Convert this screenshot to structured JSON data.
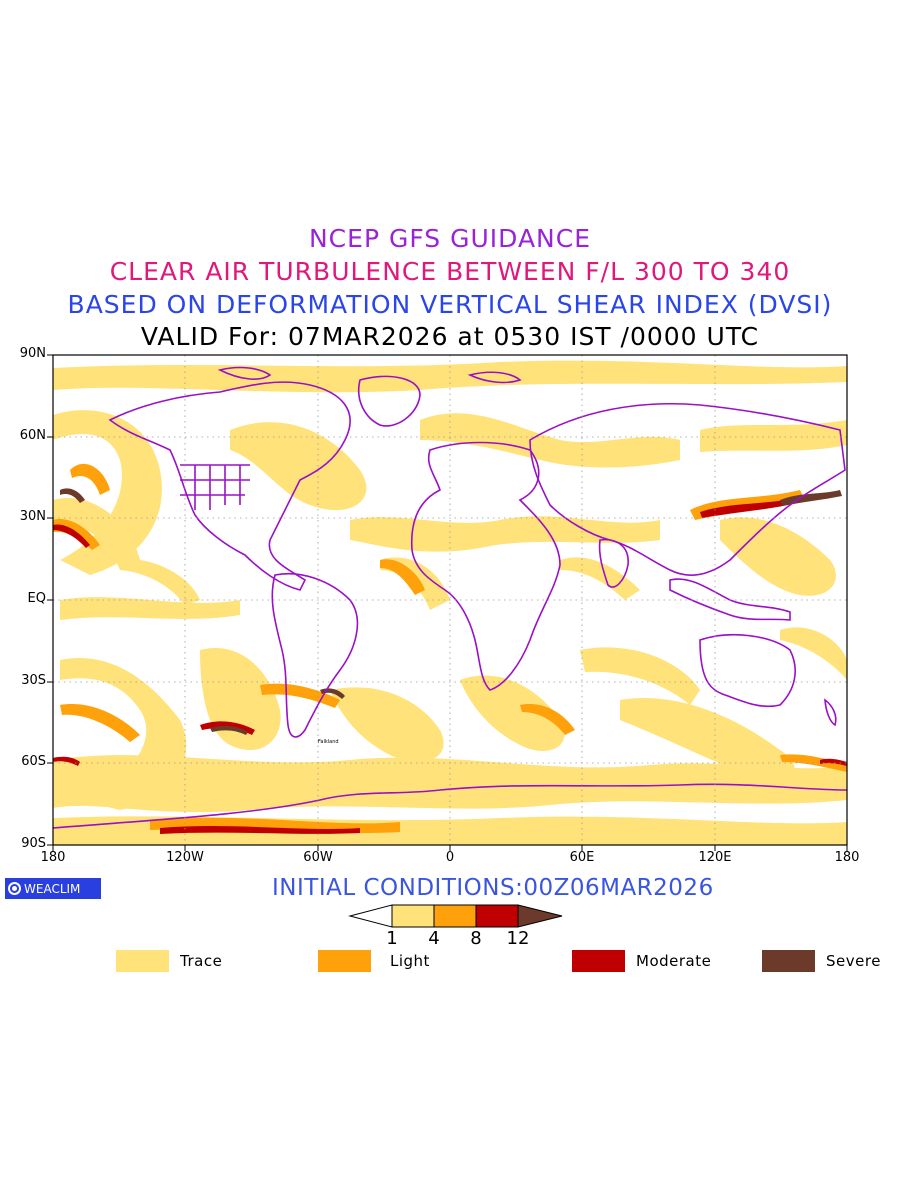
{
  "titles": {
    "line1": "NCEP GFS GUIDANCE",
    "line2": "CLEAR AIR TURBULENCE BETWEEN F/L 300 TO 340",
    "line3": "BASED ON DEFORMATION VERTICAL SHEAR INDEX (DVSI)",
    "line4": "VALID For: 07MAR2026 at 0530 IST /0000 UTC"
  },
  "colors": {
    "title1": "#9a22d8",
    "title2": "#e0187c",
    "title3": "#2a45e8",
    "trace": "#ffe27a",
    "light": "#ffa10a",
    "moderate": "#c00000",
    "severe": "#6b3a2a",
    "coast": "#9a10c8",
    "initial": "#3a55e0"
  },
  "axes": {
    "lat_labels": [
      "90N",
      "60N",
      "30N",
      "EQ",
      "30S",
      "60S",
      "90S"
    ],
    "lon_labels": [
      "180",
      "120W",
      "60W",
      "0",
      "60E",
      "120E",
      "180"
    ]
  },
  "logo": {
    "text": "WEACLIM"
  },
  "initial_conditions": "INITIAL CONDITIONS:00Z06MAR2026",
  "colorbar": {
    "ticks": [
      "1",
      "4",
      "8",
      "12"
    ]
  },
  "legend": [
    {
      "label": "Trace",
      "color": "#ffe27a"
    },
    {
      "label": "Light",
      "color": "#ffa10a"
    },
    {
      "label": "Moderate",
      "color": "#c00000"
    },
    {
      "label": "Severe",
      "color": "#6b3a2a"
    }
  ],
  "map_labels": [
    "Falkland"
  ]
}
